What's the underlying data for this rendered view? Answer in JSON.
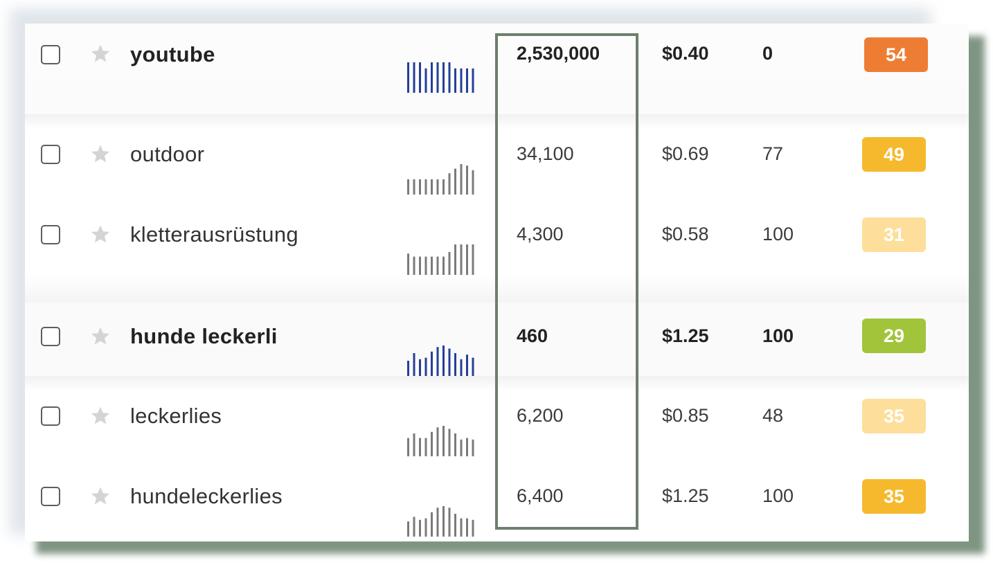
{
  "keywords": [
    {
      "keyword": "youtube",
      "bold": true,
      "volume": "2,530,000",
      "cpc": "$0.40",
      "competition": "0",
      "score": "54",
      "score_color": "#ee7d34",
      "trend_color": "#253f95",
      "trend": [
        1,
        1,
        1,
        0.8,
        1,
        1,
        1,
        1,
        0.8,
        0.8,
        0.8,
        0.8
      ]
    },
    {
      "keyword": "outdoor",
      "bold": false,
      "volume": "34,100",
      "cpc": "$0.69",
      "competition": "77",
      "score": "49",
      "score_color": "#f6b92d",
      "trend_color": "#7a7a7a",
      "trend": [
        0.5,
        0.5,
        0.5,
        0.5,
        0.5,
        0.5,
        0.5,
        0.7,
        0.85,
        1,
        0.95,
        0.8
      ]
    },
    {
      "keyword": "kletterausrüstung",
      "bold": false,
      "volume": "4,300",
      "cpc": "$0.58",
      "competition": "100",
      "score": "31",
      "score_color": "#fddf9b",
      "trend_color": "#7a7a7a",
      "trend": [
        0.7,
        0.6,
        0.6,
        0.6,
        0.6,
        0.6,
        0.6,
        0.75,
        1,
        1,
        1,
        1
      ]
    },
    {
      "keyword": "hunde leckerli",
      "bold": true,
      "volume": "460",
      "cpc": "$1.25",
      "competition": "100",
      "score": "29",
      "score_color": "#a1c43b",
      "trend_color": "#253f95",
      "trend": [
        0.5,
        0.75,
        0.55,
        0.6,
        0.8,
        0.95,
        1,
        0.9,
        0.75,
        0.55,
        0.7,
        0.6
      ]
    },
    {
      "keyword": "leckerlies",
      "bold": false,
      "volume": "6,200",
      "cpc": "$0.85",
      "competition": "48",
      "score": "35",
      "score_color": "#fddf9b",
      "trend_color": "#7a7a7a",
      "trend": [
        0.6,
        0.75,
        0.6,
        0.6,
        0.8,
        0.95,
        1,
        0.9,
        0.75,
        0.55,
        0.6,
        0.55
      ]
    },
    {
      "keyword": "hundeleckerlies",
      "bold": false,
      "volume": "6,400",
      "cpc": "$1.25",
      "competition": "100",
      "score": "35",
      "score_color": "#f6b92d",
      "trend_color": "#7a7a7a",
      "trend": [
        0.5,
        0.65,
        0.55,
        0.6,
        0.8,
        0.95,
        1,
        0.95,
        0.75,
        0.6,
        0.6,
        0.55
      ]
    }
  ]
}
